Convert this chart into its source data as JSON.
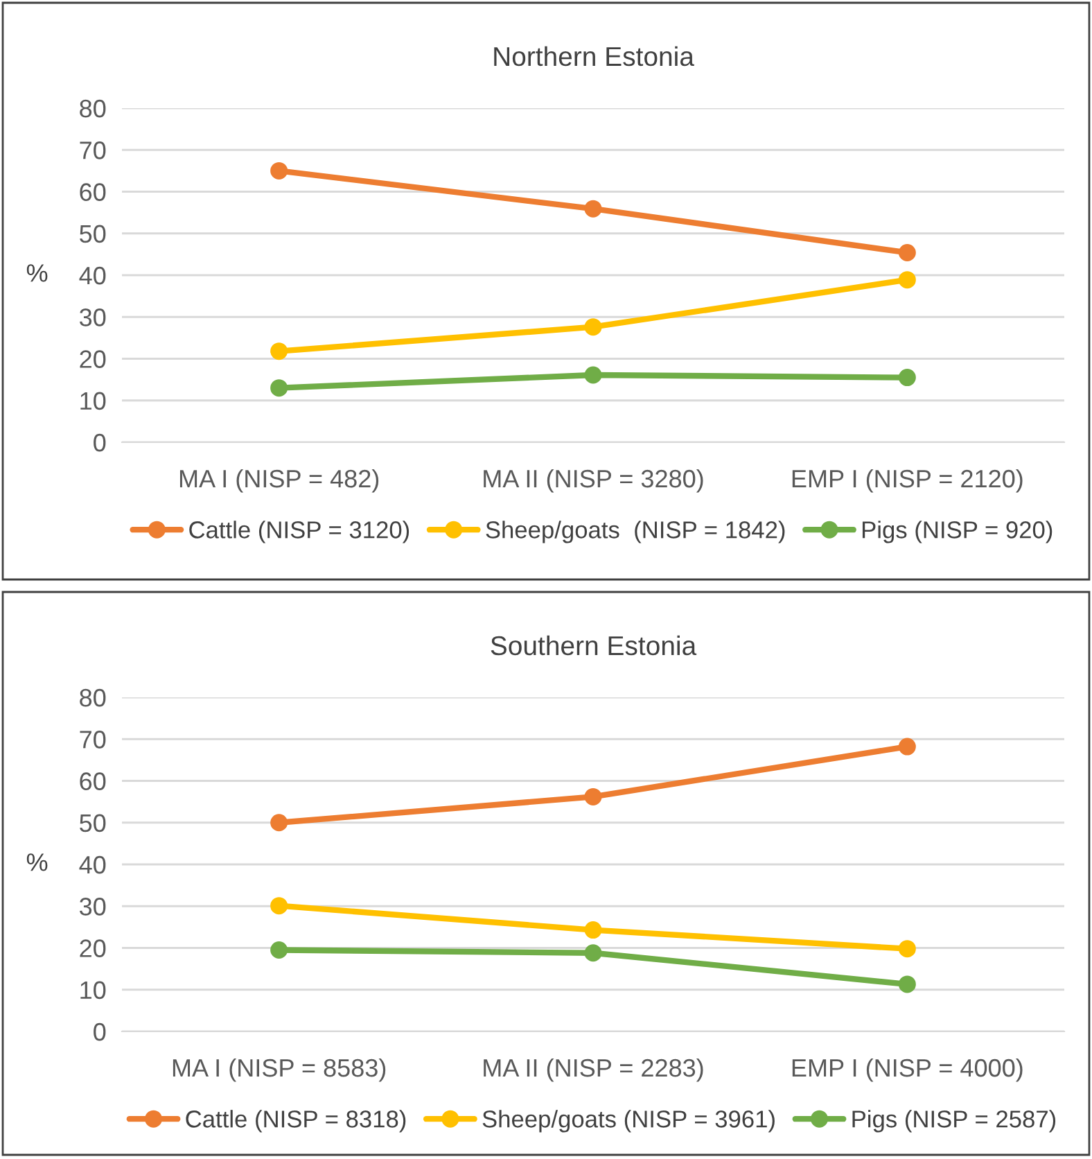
{
  "chart_data": [
    {
      "type": "line",
      "title": "Northern Estonia",
      "ylabel": "%",
      "categories": [
        "MA I (NISP = 482)",
        "MA II (NISP = 3280)",
        "EMP I (NISP = 2120)"
      ],
      "ylim": [
        0,
        80
      ],
      "yticks": [
        0,
        10,
        20,
        30,
        40,
        50,
        60,
        70,
        80
      ],
      "grid": "y",
      "legend": "bottom",
      "marker": "circle",
      "line_style": "solid",
      "series": [
        {
          "name": "Cattle (NISP = 3120)",
          "color": "#ed7d31",
          "values": [
            65.0,
            55.9,
            45.4
          ]
        },
        {
          "name": "Sheep/goats  (NISP = 1842)",
          "color": "#ffc000",
          "values": [
            21.8,
            27.6,
            38.9
          ]
        },
        {
          "name": "Pigs (NISP = 920)",
          "color": "#70ad47",
          "values": [
            13.0,
            16.1,
            15.5
          ]
        }
      ]
    },
    {
      "type": "line",
      "title": "Southern Estonia",
      "ylabel": "%",
      "categories": [
        "MA I (NISP = 8583)",
        "MA II (NISP = 2283)",
        "EMP I (NISP = 4000)"
      ],
      "ylim": [
        0,
        80
      ],
      "yticks": [
        0,
        10,
        20,
        30,
        40,
        50,
        60,
        70,
        80
      ],
      "grid": "y",
      "legend": "bottom",
      "marker": "circle",
      "line_style": "solid",
      "series": [
        {
          "name": "Cattle (NISP = 8318)",
          "color": "#ed7d31",
          "values": [
            50.0,
            56.2,
            68.2
          ]
        },
        {
          "name": "Sheep/goats (NISP = 3961)",
          "color": "#ffc000",
          "values": [
            30.1,
            24.3,
            19.8
          ]
        },
        {
          "name": "Pigs (NISP = 2587)",
          "color": "#70ad47",
          "values": [
            19.5,
            18.8,
            11.3
          ]
        }
      ]
    }
  ]
}
